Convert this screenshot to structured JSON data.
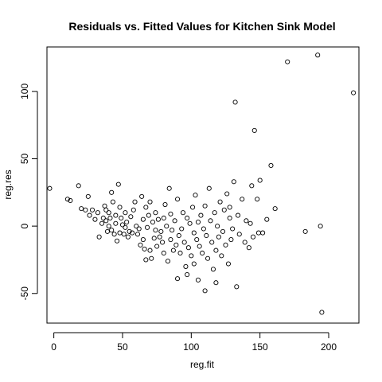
{
  "chart_data": {
    "type": "scatter",
    "title": "Residuals vs. Fitted Values for Kitchen Sink Model",
    "xlabel": "reg.fit",
    "ylabel": "reg.res",
    "xlim": [
      -5,
      222
    ],
    "ylim": [
      -72,
      133
    ],
    "xticks": [
      0,
      50,
      100,
      150,
      200
    ],
    "yticks": [
      -50,
      0,
      50,
      100
    ],
    "grid": false,
    "legend": "none",
    "marker": "open-circle",
    "points": [
      [
        -3,
        28
      ],
      [
        10,
        20
      ],
      [
        12,
        19
      ],
      [
        18,
        30
      ],
      [
        20,
        13
      ],
      [
        23,
        12
      ],
      [
        25,
        22
      ],
      [
        26,
        8
      ],
      [
        28,
        12
      ],
      [
        30,
        5
      ],
      [
        32,
        10
      ],
      [
        33,
        -8
      ],
      [
        35,
        2
      ],
      [
        36,
        6
      ],
      [
        37,
        15
      ],
      [
        38,
        12
      ],
      [
        38,
        4
      ],
      [
        39,
        -4
      ],
      [
        40,
        10
      ],
      [
        40,
        0
      ],
      [
        41,
        6
      ],
      [
        42,
        25
      ],
      [
        42,
        -3
      ],
      [
        43,
        18
      ],
      [
        44,
        -6
      ],
      [
        45,
        8
      ],
      [
        45,
        2
      ],
      [
        46,
        -11
      ],
      [
        47,
        31
      ],
      [
        48,
        14
      ],
      [
        48,
        -5
      ],
      [
        49,
        6
      ],
      [
        50,
        1
      ],
      [
        51,
        -6
      ],
      [
        52,
        10
      ],
      [
        52,
        -1
      ],
      [
        53,
        3
      ],
      [
        54,
        -8
      ],
      [
        55,
        -4
      ],
      [
        56,
        7
      ],
      [
        57,
        -5
      ],
      [
        58,
        12
      ],
      [
        59,
        18
      ],
      [
        60,
        0
      ],
      [
        61,
        -6
      ],
      [
        62,
        -2
      ],
      [
        63,
        -14
      ],
      [
        64,
        22
      ],
      [
        65,
        5
      ],
      [
        65,
        -10
      ],
      [
        66,
        -17
      ],
      [
        67,
        14
      ],
      [
        67,
        -25
      ],
      [
        68,
        -1
      ],
      [
        69,
        8
      ],
      [
        70,
        -18
      ],
      [
        70,
        18
      ],
      [
        71,
        -24
      ],
      [
        72,
        3
      ],
      [
        73,
        -9
      ],
      [
        74,
        10
      ],
      [
        74,
        -3
      ],
      [
        75,
        -15
      ],
      [
        76,
        5
      ],
      [
        77,
        -8
      ],
      [
        78,
        -4
      ],
      [
        79,
        -12
      ],
      [
        80,
        6
      ],
      [
        80,
        -20
      ],
      [
        81,
        16
      ],
      [
        82,
        0
      ],
      [
        83,
        -26
      ],
      [
        84,
        28
      ],
      [
        85,
        9
      ],
      [
        85,
        -10
      ],
      [
        86,
        -3
      ],
      [
        87,
        -18
      ],
      [
        88,
        4
      ],
      [
        89,
        -14
      ],
      [
        90,
        20
      ],
      [
        90,
        -39
      ],
      [
        91,
        -7
      ],
      [
        92,
        -20
      ],
      [
        93,
        -2
      ],
      [
        94,
        10
      ],
      [
        95,
        -12
      ],
      [
        96,
        -30
      ],
      [
        97,
        6
      ],
      [
        97,
        -36
      ],
      [
        98,
        -16
      ],
      [
        99,
        2
      ],
      [
        100,
        -22
      ],
      [
        101,
        14
      ],
      [
        102,
        -5
      ],
      [
        102,
        -28
      ],
      [
        103,
        23
      ],
      [
        104,
        -10
      ],
      [
        105,
        3
      ],
      [
        105,
        -40
      ],
      [
        106,
        -15
      ],
      [
        107,
        8
      ],
      [
        108,
        -20
      ],
      [
        109,
        -2
      ],
      [
        110,
        15
      ],
      [
        110,
        -48
      ],
      [
        111,
        -7
      ],
      [
        112,
        -24
      ],
      [
        113,
        28
      ],
      [
        114,
        4
      ],
      [
        115,
        -12
      ],
      [
        116,
        -32
      ],
      [
        117,
        10
      ],
      [
        118,
        -18
      ],
      [
        118,
        -42
      ],
      [
        119,
        0
      ],
      [
        120,
        -8
      ],
      [
        121,
        18
      ],
      [
        122,
        -22
      ],
      [
        123,
        -4
      ],
      [
        124,
        12
      ],
      [
        125,
        -14
      ],
      [
        126,
        24
      ],
      [
        127,
        -28
      ],
      [
        128,
        6
      ],
      [
        128,
        14
      ],
      [
        129,
        -10
      ],
      [
        130,
        -2
      ],
      [
        131,
        33
      ],
      [
        132,
        92
      ],
      [
        133,
        -45
      ],
      [
        134,
        8
      ],
      [
        135,
        -6
      ],
      [
        137,
        20
      ],
      [
        139,
        -12
      ],
      [
        140,
        4
      ],
      [
        142,
        -16
      ],
      [
        143,
        2
      ],
      [
        144,
        30
      ],
      [
        145,
        -8
      ],
      [
        146,
        71
      ],
      [
        148,
        20
      ],
      [
        149,
        -5
      ],
      [
        150,
        34
      ],
      [
        152,
        -5
      ],
      [
        155,
        5
      ],
      [
        158,
        45
      ],
      [
        161,
        13
      ],
      [
        170,
        122
      ],
      [
        183,
        -4
      ],
      [
        192,
        127
      ],
      [
        194,
        0
      ],
      [
        195,
        -64
      ],
      [
        218,
        99
      ]
    ]
  }
}
